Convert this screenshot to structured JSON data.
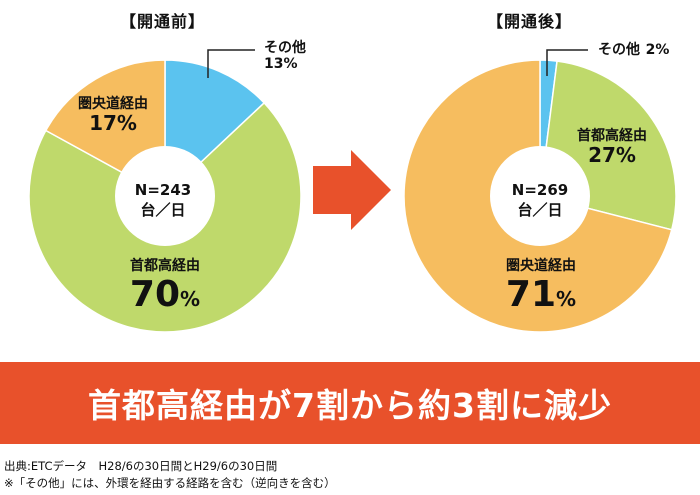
{
  "chart_data": [
    {
      "type": "pie",
      "title": "【開通前】",
      "center_text": [
        "N=243",
        "台／日"
      ],
      "slices": [
        {
          "label": "その他",
          "value": 13,
          "value_text": "13%",
          "color": "#5bc3ef"
        },
        {
          "label": "首都高経由",
          "value": 70,
          "value_text": "70",
          "color": "#bfd96b"
        },
        {
          "label": "圏央道経由",
          "value": 17,
          "value_text": "17%",
          "color": "#f6bd5f"
        }
      ]
    },
    {
      "type": "pie",
      "title": "【開通後】",
      "center_text": [
        "N=269",
        "台／日"
      ],
      "slices": [
        {
          "label": "その他",
          "value": 2,
          "value_text": "2%",
          "color": "#5bc3ef"
        },
        {
          "label": "首都高経由",
          "value": 27,
          "value_text": "27%",
          "color": "#bfd96b"
        },
        {
          "label": "圏央道経由",
          "value": 71,
          "value_text": "71",
          "color": "#f6bd5f"
        }
      ]
    }
  ],
  "percent_sign": "%",
  "banner_text": "首都高経由が7割から約3割に減少",
  "footnotes": [
    "出典:ETCデータ　H28/6の30日間とH29/6の30日間",
    "※「その他」には、外環を経由する経路を含む（逆向きを含む）"
  ],
  "colors": {
    "banner": "#e8512b",
    "arrow": "#e8512b",
    "leader": "#222222"
  }
}
